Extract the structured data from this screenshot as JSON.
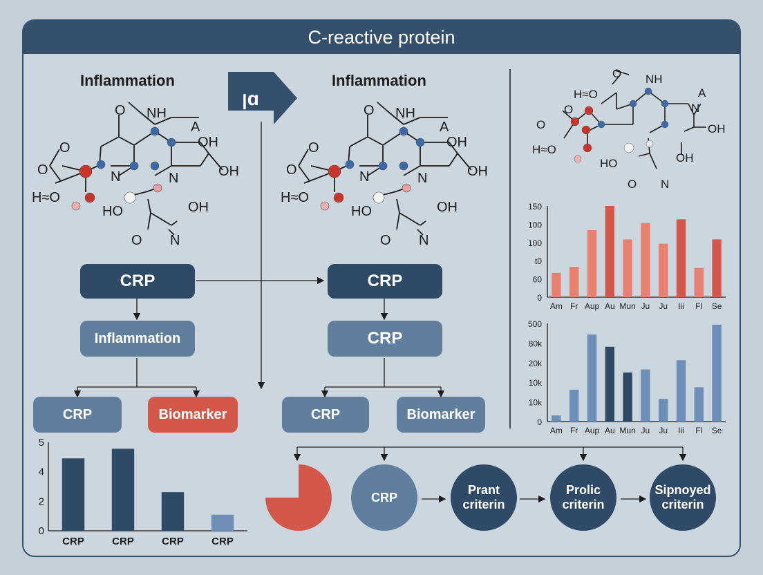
{
  "title": "C-reactive protein",
  "arrow_icon_glyph": "ꞁɑ",
  "left_section": {
    "title": "Inflammation",
    "flow": {
      "top": "CRP",
      "middle": "Inflammation",
      "left": "CRP",
      "right": "Biomarker"
    }
  },
  "middle_section": {
    "title": "Inflammation",
    "flow": {
      "top": "CRP",
      "middle": "CRP",
      "left": "CRP",
      "right": "Biomarker"
    }
  },
  "molecule_labels": {
    "ring_o": "O",
    "nh": "NH",
    "a": "A",
    "oh_top": "OH",
    "oh_right": "OH",
    "n": "N",
    "n2": "N",
    "o_left_top": "O",
    "o_left": "O",
    "h2o": "H≈O",
    "ho": "HO",
    "oh_bottom": "OH",
    "o_bottom": "O",
    "n_bottom": "N"
  },
  "right_molecule_labels": {
    "o_top": "O",
    "nh": "NH",
    "a": "A",
    "n": "N",
    "oh": "OH",
    "ho": "H≈O",
    "ho_left": "H≈O",
    "ho2": "HO",
    "oh2": "OH",
    "o_bottom": "O",
    "n_bottom": "N",
    "o_left": "O",
    "o_left2": "O"
  },
  "process": {
    "c1": "CRP",
    "c2": "Prant criterin",
    "c3": "Prolic criterin",
    "c4": "Sipnoyed criterin"
  },
  "colors": {
    "dark": "#2f4a66",
    "mid": "#607f9f",
    "red": "#d35849",
    "light_red": "#e9806f",
    "bar_blue": "#6d8fb7"
  },
  "chart_data": [
    {
      "type": "bar",
      "categories": [
        "Am",
        "Fr",
        "Aup",
        "Au",
        "Mun",
        "Ju",
        "Ju",
        "Iii",
        "Fl",
        "Se"
      ],
      "values": [
        40,
        50,
        110,
        150,
        95,
        122,
        88,
        128,
        48,
        95
      ],
      "ytick_labels": [
        "0",
        "60",
        "t0",
        "100",
        "100",
        "150"
      ],
      "ylim": [
        0,
        150
      ],
      "grid": false
    },
    {
      "type": "bar",
      "categories": [
        "Am",
        "Fr",
        "Aup",
        "Au",
        "Mun",
        "Ju",
        "Ju",
        "Iii",
        "Fl",
        "Se"
      ],
      "values": [
        10,
        52,
        142,
        122,
        80,
        85,
        37,
        100,
        56,
        158
      ],
      "ytick_labels": [
        "0",
        "10k",
        "10k",
        "20k",
        "80k",
        "500"
      ],
      "ylim": [
        0,
        160
      ],
      "grid": false
    },
    {
      "type": "bar",
      "categories": [
        "CRP",
        "CRP",
        "CRP",
        "CRP"
      ],
      "values": [
        4.5,
        5.1,
        2.4,
        1.0
      ],
      "ytick_labels": [
        "0",
        "2",
        "4",
        "5"
      ],
      "ylim": [
        0,
        5.5
      ],
      "grid": false
    }
  ]
}
